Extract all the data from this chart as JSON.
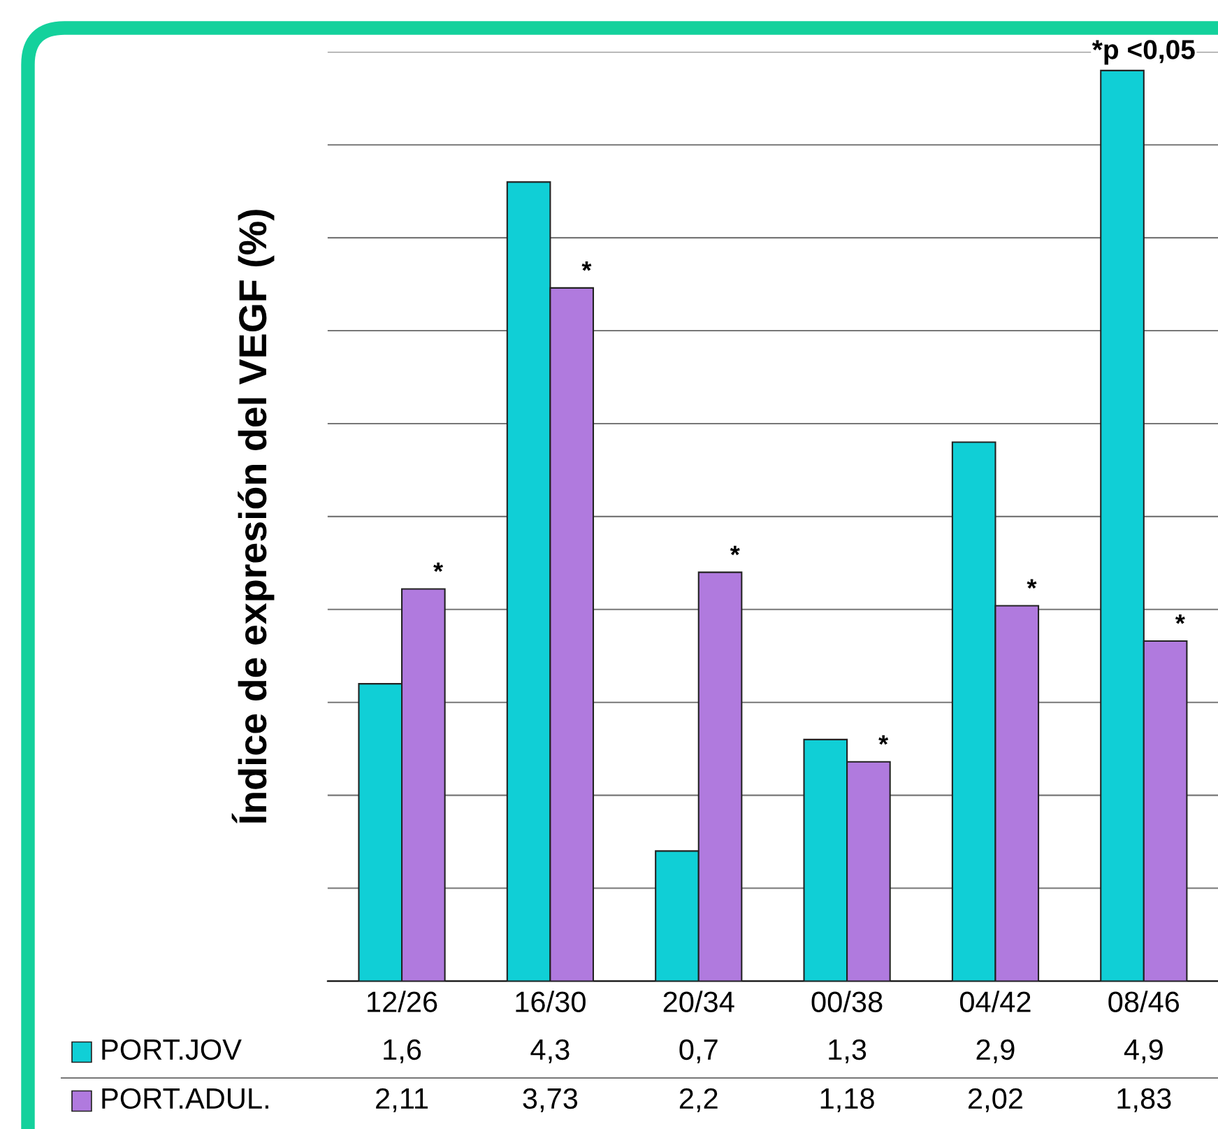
{
  "chart_data": {
    "type": "bar",
    "ylabel": "Índice de expresión del VEGF (%)",
    "categories": [
      "12/26",
      "16/30",
      "20/34",
      "00/38",
      "04/42",
      "08/46"
    ],
    "series": [
      {
        "name": "PORT.JOV",
        "color": "#10cfd6",
        "values": [
          1.6,
          4.3,
          0.7,
          1.3,
          2.9,
          4.9
        ],
        "value_labels": [
          "1,6",
          "4,3",
          "0,7",
          "1,3",
          "2,9",
          "4,9"
        ]
      },
      {
        "name": "PORT.ADUL.",
        "color": "#b07ade",
        "values": [
          2.11,
          3.73,
          2.2,
          1.18,
          2.02,
          1.83
        ],
        "value_labels": [
          "2,11",
          "3,73",
          "2,2",
          "1,18",
          "2,02",
          "1,83"
        ]
      }
    ],
    "ylim": [
      0,
      5
    ],
    "yticks": [
      {
        "value": 0,
        "label": null
      },
      {
        "value": 0.5,
        "label": null
      },
      {
        "value": 1,
        "label": null
      },
      {
        "value": 1.5,
        "label": null
      },
      {
        "value": 2,
        "label": null
      },
      {
        "value": 2.5,
        "label": null
      },
      {
        "value": 3,
        "label": null
      },
      {
        "value": 3.5,
        "label": null
      },
      {
        "value": 4,
        "label": null
      },
      {
        "value": 4.5,
        "label": null
      },
      {
        "value": 5,
        "label": null
      }
    ],
    "grid": "y",
    "legend": "bottom",
    "annotations": [
      {
        "text": "*",
        "x": "12/26",
        "y": 2.11
      },
      {
        "text": "*",
        "x": "16/30",
        "y": 3.73
      },
      {
        "text": "*",
        "x": "20/34",
        "y": 2.2
      },
      {
        "text": "*",
        "x": "00/38",
        "y": 1.18
      },
      {
        "text": "*",
        "x": "04/42",
        "y": 2.02
      },
      {
        "text": "*",
        "x": "08/46",
        "y": 1.83
      },
      "*p <0,05"
    ]
  }
}
